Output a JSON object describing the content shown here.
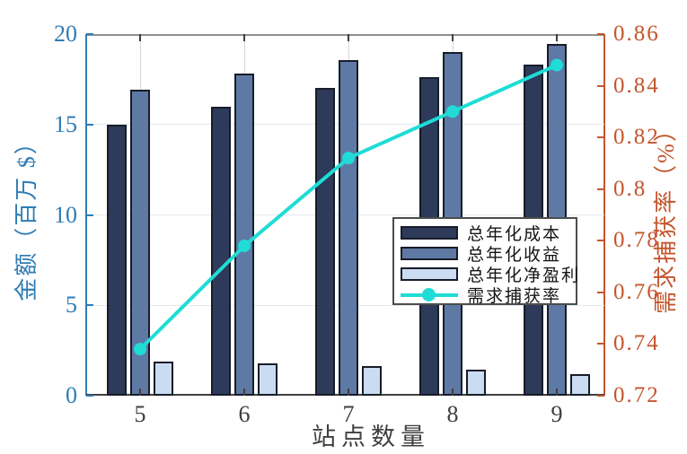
{
  "chart_data": {
    "type": "bar+line",
    "categories": [
      5,
      6,
      7,
      8,
      9
    ],
    "bar_series": [
      {
        "id": "cost",
        "name": "总年化成本",
        "color": "#2d3a59",
        "values": [
          15.0,
          16.0,
          17.0,
          17.6,
          18.3
        ]
      },
      {
        "id": "revenue",
        "name": "总年化收益",
        "color": "#5f79a5",
        "values": [
          16.9,
          17.8,
          18.55,
          19.0,
          19.45
        ]
      },
      {
        "id": "profit",
        "name": "总年化净盈利",
        "color": "#cbdcf2",
        "values": [
          1.9,
          1.8,
          1.65,
          1.45,
          1.2
        ]
      }
    ],
    "line_series": {
      "id": "capture-rate",
      "name": "需求捕获率",
      "color": "#1fdcd6",
      "values": [
        0.738,
        0.778,
        0.812,
        0.83,
        0.848
      ]
    },
    "left_axis": {
      "label": "金额（百万 $）",
      "min": 0,
      "max": 20,
      "ticks": [
        0,
        5,
        10,
        15,
        20
      ],
      "color": "#2f7cb5"
    },
    "right_axis": {
      "label": "需求捕获率（%）",
      "min": 0.72,
      "max": 0.86,
      "ticks": [
        "0.72",
        "0.74",
        "0.76",
        "0.78",
        "0.8",
        "0.82",
        "0.84",
        "0.86"
      ],
      "color": "#c5552e"
    },
    "x_axis": {
      "label": "站点数量",
      "ticks": [
        "5",
        "6",
        "7",
        "8",
        "9"
      ]
    },
    "grid": "on",
    "legend_position": "center-right-inside"
  }
}
